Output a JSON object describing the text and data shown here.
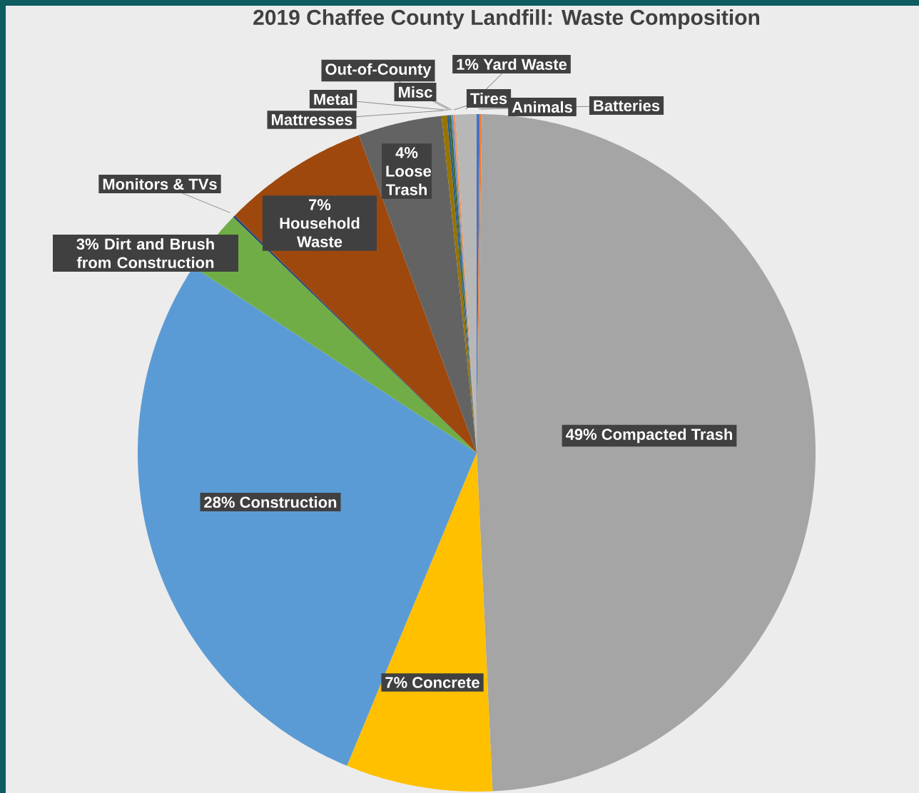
{
  "chart_data": {
    "type": "pie",
    "title": "2019 Chaffee County Landfill: Waste Composition",
    "categories": [
      "Animals",
      "Batteries",
      "Compacted Trash",
      "Concrete",
      "Construction",
      "Dirt and Brush from Construction",
      "Monitors & TVs",
      "Household Waste",
      "Loose Trash",
      "Mattresses",
      "Metal",
      "Misc",
      "Out-of-County",
      "Tires",
      "Yard Waste"
    ],
    "values": [
      0.15,
      0.1,
      49,
      7,
      28,
      3,
      0.1,
      7,
      4,
      0.25,
      0.1,
      0.1,
      0.1,
      0.1,
      1
    ],
    "colors": [
      "#4472c4",
      "#ed7d31",
      "#a5a5a5",
      "#ffc000",
      "#5b9bd5",
      "#70ad47",
      "#264478",
      "#9e480e",
      "#636363",
      "#997300",
      "#255e91",
      "#43682b",
      "#698ed0",
      "#f1975a",
      "#b7b7b7"
    ],
    "value_labels": [
      null,
      null,
      "49%",
      "7%",
      "28%",
      "3%",
      null,
      "7%",
      "4%",
      null,
      null,
      null,
      null,
      null,
      "1%"
    ]
  }
}
